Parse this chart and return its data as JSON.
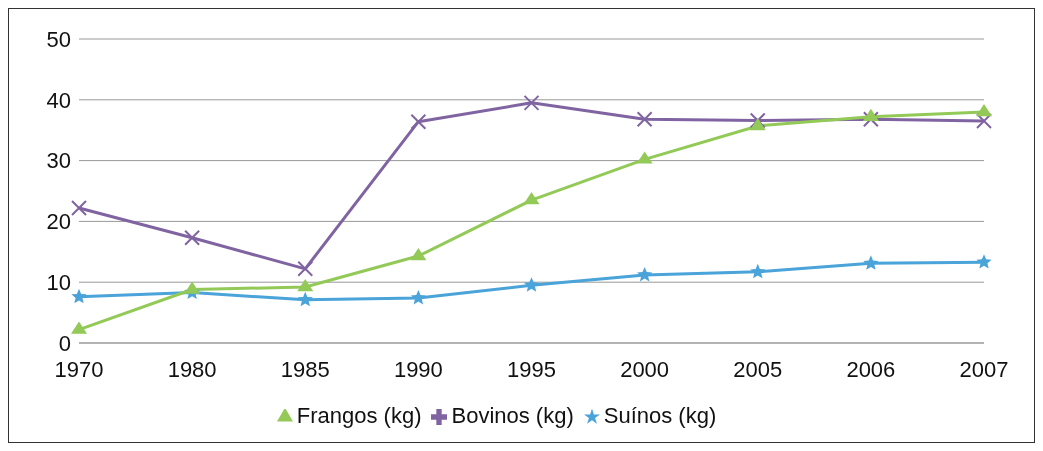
{
  "chart_data": {
    "type": "line",
    "categories": [
      "1970",
      "1980",
      "1985",
      "1990",
      "1995",
      "2000",
      "2005",
      "2006",
      "2007"
    ],
    "series": [
      {
        "name": "Frangos (kg)",
        "color": "#92c957",
        "marker": "triangle",
        "values": [
          2.2,
          8.8,
          9.2,
          14.3,
          23.5,
          30.2,
          35.7,
          37.2,
          38
        ]
      },
      {
        "name": "Bovinos (kg)",
        "color": "#8064a2",
        "marker": "cross",
        "values": [
          22.2,
          17.3,
          12.2,
          36.4,
          39.5,
          36.8,
          36.6,
          36.8,
          36.5
        ]
      },
      {
        "name": "Suínos (kg)",
        "color": "#4aa3d9",
        "marker": "star",
        "values": [
          7.6,
          8.3,
          7.1,
          7.4,
          9.5,
          11.2,
          11.7,
          13.1,
          13.3
        ]
      }
    ],
    "ylim": [
      0,
      50
    ],
    "yticks": [
      0,
      10,
      20,
      30,
      40,
      50
    ],
    "grid": "y",
    "legend": "bottom"
  }
}
